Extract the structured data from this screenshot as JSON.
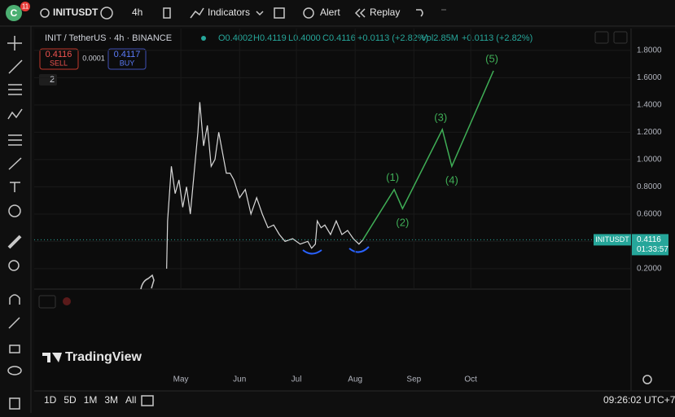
{
  "toolbar": {
    "avatar": "C",
    "badge": "11",
    "symbol": "INITUSDT",
    "interval": "4h",
    "indicators": "Indicators",
    "alert": "Alert",
    "replay": "Replay"
  },
  "legend": {
    "title": "INIT / TetherUS · 4h · BINANCE",
    "open": "O0.4002",
    "high": "H0.4119",
    "low": "L0.4000",
    "close": "C0.4116",
    "change": "+0.0113 (+2.82%)",
    "volume": "Vol2.85M",
    "vol_change": "+0.0113 (+2.82%)",
    "indicator_count": "2"
  },
  "trade": {
    "sell_price": "0.4116",
    "sell": "SELL",
    "spread": "0.0001",
    "buy_price": "0.4117",
    "buy": "BUY"
  },
  "chart_data": {
    "type": "line",
    "ylim": [
      0.05,
      1.96
    ],
    "xlim": [
      43.6,
      358.6
    ],
    "yticks": [
      {
        "value": 1.8,
        "label": "1.8000"
      },
      {
        "value": 1.6,
        "label": "1.6000"
      },
      {
        "value": 1.4,
        "label": "1.4000"
      },
      {
        "value": 1.2,
        "label": "1.2000"
      },
      {
        "value": 1.0,
        "label": "1.0000"
      },
      {
        "value": 0.8,
        "label": "0.8000"
      },
      {
        "value": 0.6,
        "label": "0.6000"
      },
      {
        "value": 0.4,
        "label": "0.4000"
      },
      {
        "value": 0.2,
        "label": "0.2000"
      }
    ],
    "xticks": [
      {
        "value": 121,
        "label": "May"
      },
      {
        "value": 152,
        "label": "Jun"
      },
      {
        "value": 182,
        "label": "Jul"
      },
      {
        "value": 213,
        "label": "Aug"
      },
      {
        "value": 244,
        "label": "Sep"
      },
      {
        "value": 274,
        "label": "Oct"
      }
    ],
    "series": [
      {
        "name": "INITUSDT",
        "color": "#d9d9d9",
        "x": [
          113.5,
          114,
          116,
          118,
          120,
          122,
          124,
          126,
          128,
          130,
          131,
          133,
          135,
          137,
          139,
          141,
          143,
          145,
          147,
          149,
          152,
          155,
          158,
          161,
          164,
          167,
          170,
          173,
          176,
          180,
          184,
          188,
          190,
          192,
          193,
          195,
          197,
          200,
          203,
          206,
          209,
          212,
          215,
          217
        ],
        "values": [
          0.2,
          0.55,
          0.95,
          0.75,
          0.85,
          0.65,
          0.8,
          0.6,
          0.9,
          1.2,
          1.42,
          1.1,
          1.25,
          0.95,
          1.0,
          1.2,
          1.05,
          0.9,
          0.9,
          0.85,
          0.72,
          0.78,
          0.6,
          0.72,
          0.6,
          0.5,
          0.52,
          0.45,
          0.4,
          0.42,
          0.38,
          0.4,
          0.35,
          0.38,
          0.55,
          0.5,
          0.52,
          0.45,
          0.55,
          0.45,
          0.48,
          0.42,
          0.38,
          0.41
        ]
      }
    ],
    "projection": {
      "color": "#3fae56",
      "x": [
        217,
        233.6,
        238,
        259,
        264,
        286
      ],
      "values": [
        0.41,
        0.78,
        0.64,
        1.22,
        0.95,
        1.65
      ],
      "wave_labels": [
        "(1)",
        "(2)",
        "(3)",
        "(4)",
        "(5)"
      ]
    },
    "last_price": {
      "name": "INITUSDT",
      "value": 0.4116,
      "label": "0.4116",
      "countdown": "01:33:57"
    }
  },
  "branding": "TradingView",
  "ranges": [
    "1D",
    "5D",
    "1M",
    "3M",
    "All"
  ],
  "clock": "09:26:02 UTC+7"
}
